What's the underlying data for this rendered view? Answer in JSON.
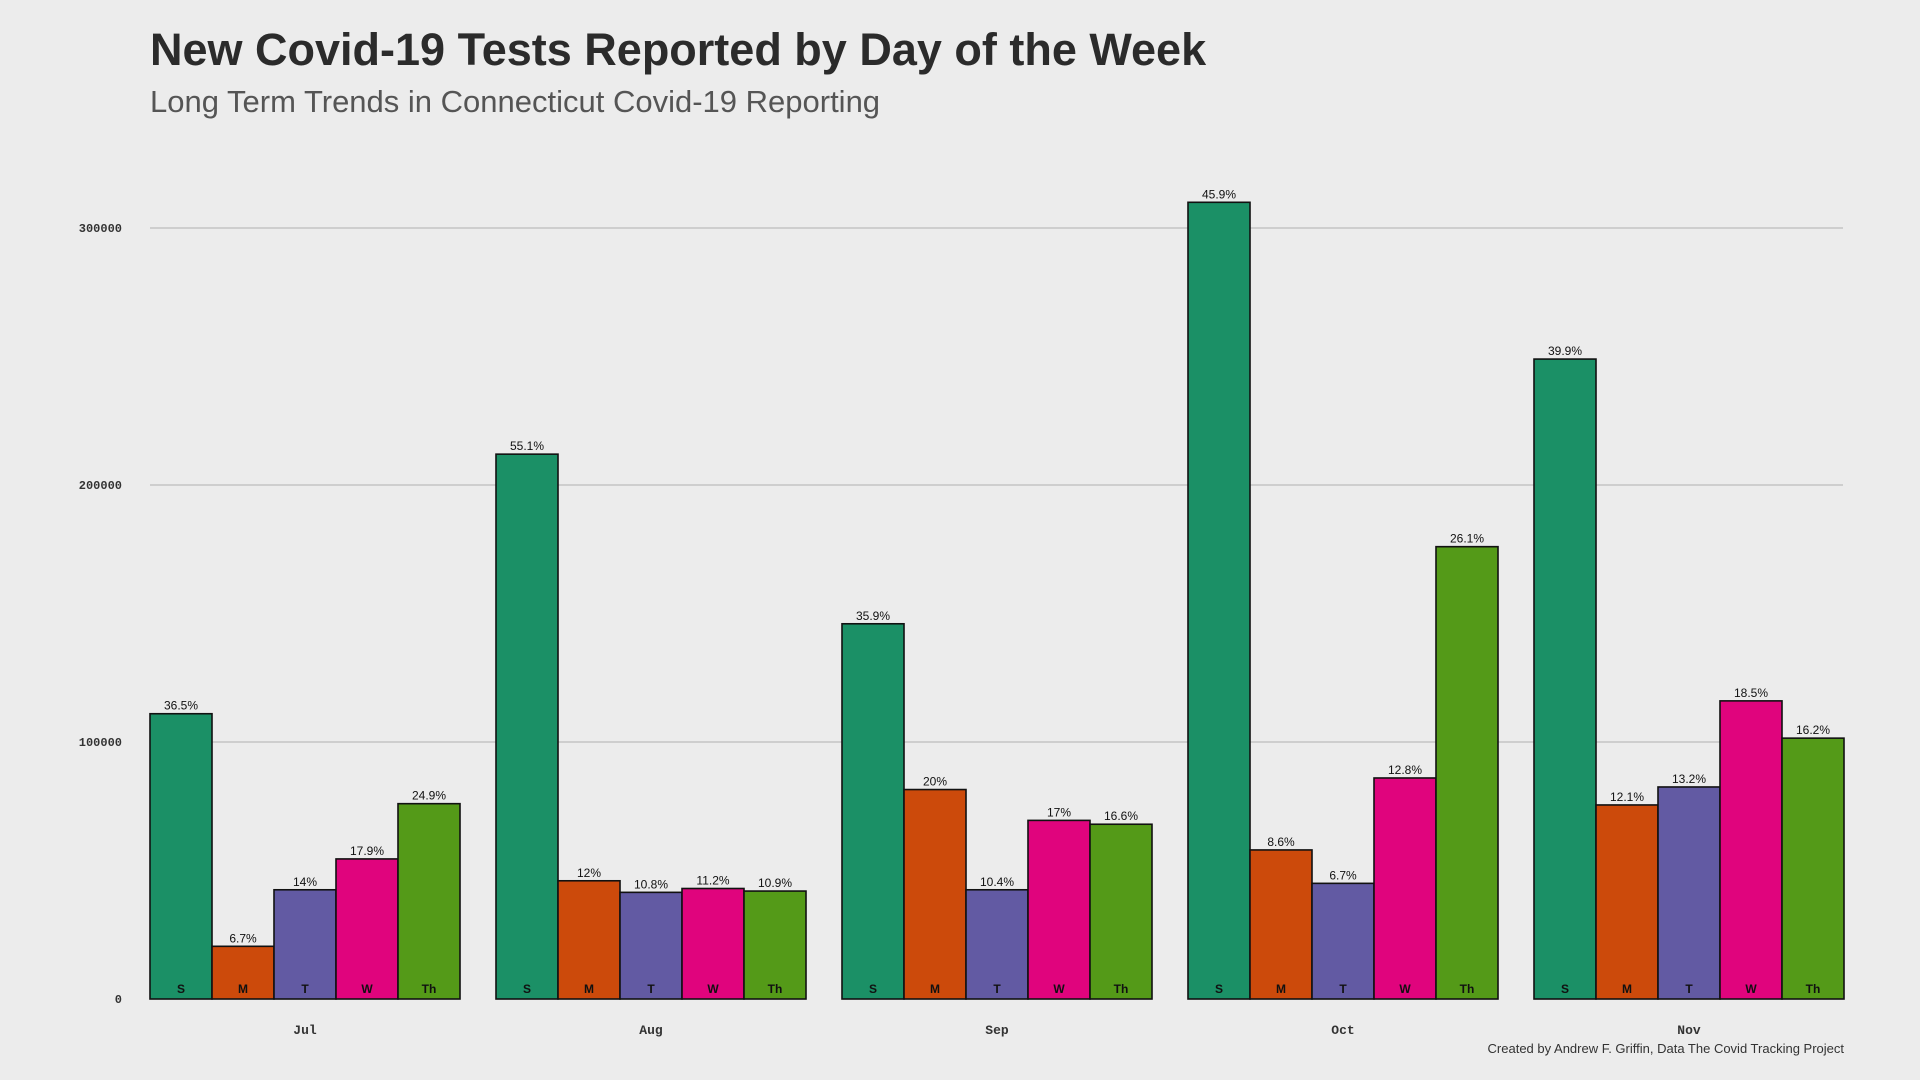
{
  "chart_data": {
    "type": "bar",
    "title": "New Covid-19 Tests Reported by Day of the Week",
    "subtitle": "Long Term Trends in Connecticut Covid-19 Reporting",
    "caption": "Created by Andrew F. Griffin, Data The Covid Tracking Project",
    "xlabel": "",
    "ylabel": "",
    "ylim": [
      0,
      300000
    ],
    "yticks": [
      "0",
      "100000",
      "200000",
      "300000"
    ],
    "ytick_values": [
      0,
      100000,
      200000,
      300000
    ],
    "grid": true,
    "legend": "none",
    "categories": [
      "Jul",
      "Aug",
      "Sep",
      "Oct",
      "Nov"
    ],
    "series": [
      {
        "name": "S",
        "color": "#1b9066",
        "values": [
          111000,
          212000,
          146000,
          310000,
          249000
        ],
        "labels": [
          "36.5%",
          "55.1%",
          "35.9%",
          "45.9%",
          "39.9%"
        ]
      },
      {
        "name": "M",
        "color": "#cc4a0b",
        "values": [
          20500,
          46000,
          81500,
          58000,
          75500
        ],
        "labels": [
          "6.7%",
          "12%",
          "20%",
          "8.6%",
          "12.1%"
        ]
      },
      {
        "name": "T",
        "color": "#625aa3",
        "values": [
          42500,
          41500,
          42500,
          45000,
          82500
        ],
        "labels": [
          "14%",
          "10.8%",
          "10.4%",
          "6.7%",
          "13.2%"
        ]
      },
      {
        "name": "W",
        "color": "#e0047d",
        "values": [
          54500,
          43000,
          69500,
          86000,
          116000
        ],
        "labels": [
          "17.9%",
          "11.2%",
          "17%",
          "12.8%",
          "18.5%"
        ]
      },
      {
        "name": "Th",
        "color": "#549a18",
        "values": [
          76000,
          42000,
          68000,
          176000,
          101500
        ],
        "labels": [
          "24.9%",
          "10.9%",
          "16.6%",
          "26.1%",
          "16.2%"
        ]
      }
    ]
  }
}
